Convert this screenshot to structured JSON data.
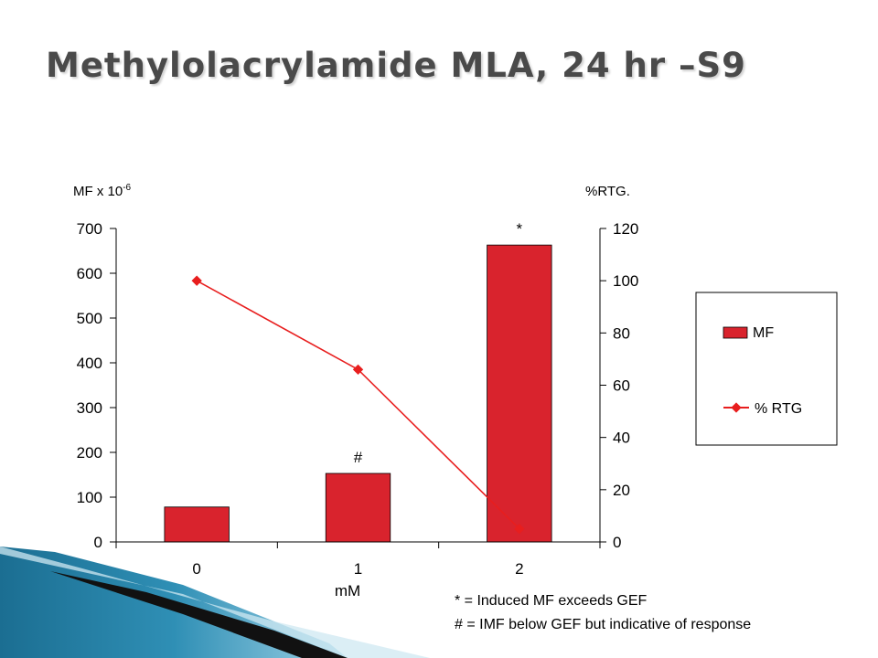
{
  "slide": {
    "title": "Methylolacrylamide MLA, 24 hr –S9"
  },
  "chart_data": {
    "type": "bar",
    "categories": [
      "0",
      "1",
      "2"
    ],
    "series": [
      {
        "name": "MF",
        "type": "bar",
        "values": [
          78,
          153,
          663
        ],
        "color": "#d9232d"
      },
      {
        "name": "% RTG",
        "type": "line",
        "axis": "right",
        "values": [
          100,
          66,
          5
        ],
        "color": "#e81e1e"
      }
    ],
    "bar_annotations": [
      "",
      "#",
      "*"
    ],
    "xlabel": "mM",
    "ylabel_left": "MF x 10",
    "ylabel_left_exponent": "-6",
    "ylabel_right": "%RTG.",
    "ylim_left": [
      0,
      700
    ],
    "yticks_left": [
      0,
      100,
      200,
      300,
      400,
      500,
      600,
      700
    ],
    "ylim_right": [
      0,
      120
    ],
    "yticks_right": [
      0,
      20,
      40,
      60,
      80,
      100,
      120
    ],
    "grid": false,
    "legend_position": "right",
    "legend": [
      "MF",
      "% RTG"
    ]
  },
  "footnotes": [
    "* = Induced MF exceeds GEF",
    "# = IMF below GEF but indicative of response"
  ]
}
